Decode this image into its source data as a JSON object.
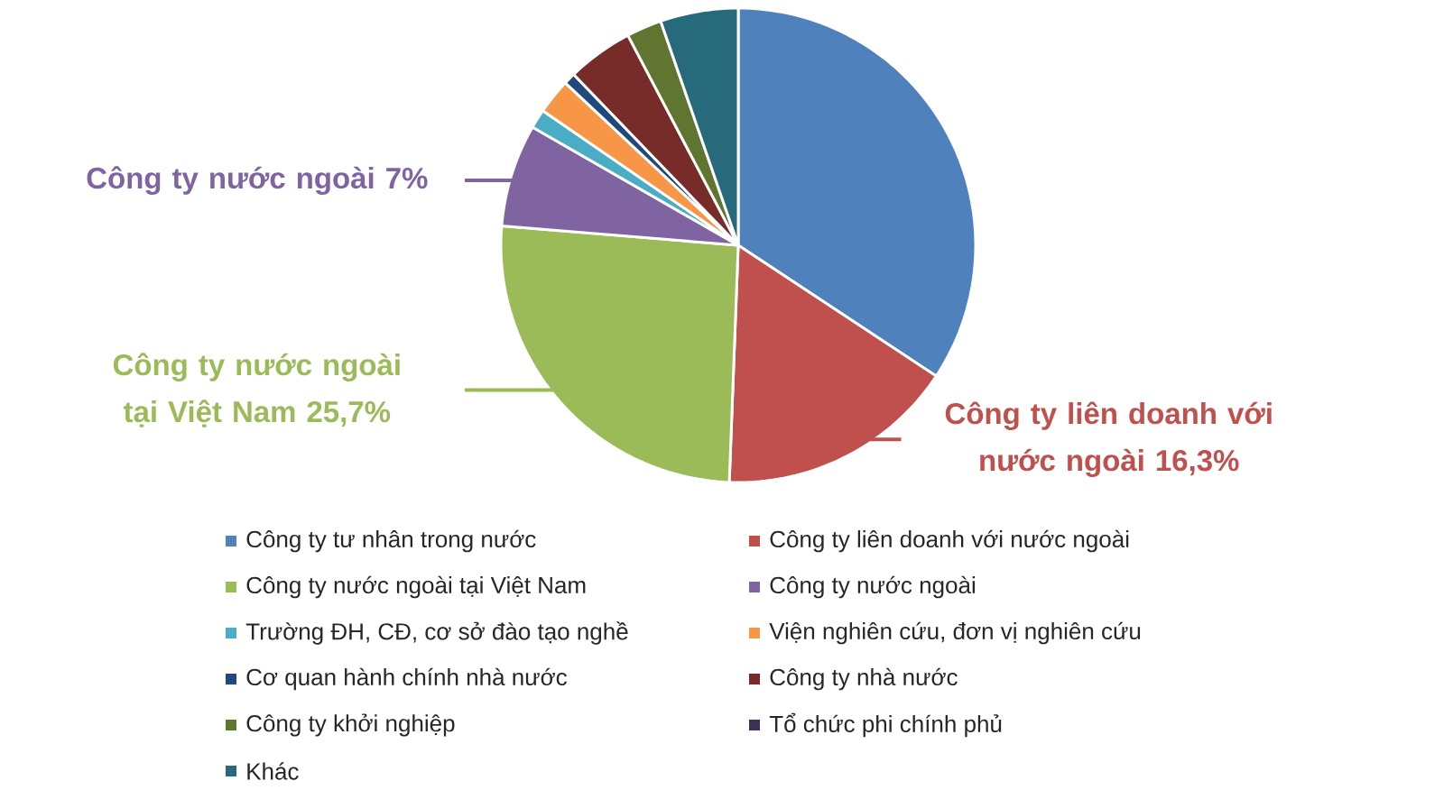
{
  "chart_data": {
    "type": "pie",
    "categories": [
      "Công ty tư nhân trong nước",
      "Công ty liên doanh với nước ngoài",
      "Công ty nước ngoài tại Việt Nam",
      "Công ty nước ngoài",
      "Trường ĐH, CĐ, cơ sở đào tạo nghề",
      "Viện nghiên cứu, đơn vị nghiên cứu",
      "Cơ quan hành chính nhà nước",
      "Công ty nhà nước",
      "Công ty khởi nghiệp",
      "Tổ chức phi chính phủ",
      "Khác"
    ],
    "values": [
      34.3,
      16.3,
      25.7,
      7,
      1.3,
      2.4,
      0.8,
      4.5,
      2.4,
      null,
      5.3
    ],
    "colors": [
      "#4f81bd",
      "#c0504d",
      "#9bbb59",
      "#8064a2",
      "#4bacc6",
      "#f79646",
      "#1f497d",
      "#772c2a",
      "#5f7530",
      "#3f3151",
      "#276a7c"
    ],
    "value_labels": [
      null,
      "Công ty liên doanh với nước ngoài 16,3%",
      "Công ty nước ngoài tại Việt Nam 25,7%",
      "Công ty nước ngoài 7%",
      null,
      null,
      null,
      null,
      null,
      null,
      null
    ],
    "legend": "bottom"
  }
}
